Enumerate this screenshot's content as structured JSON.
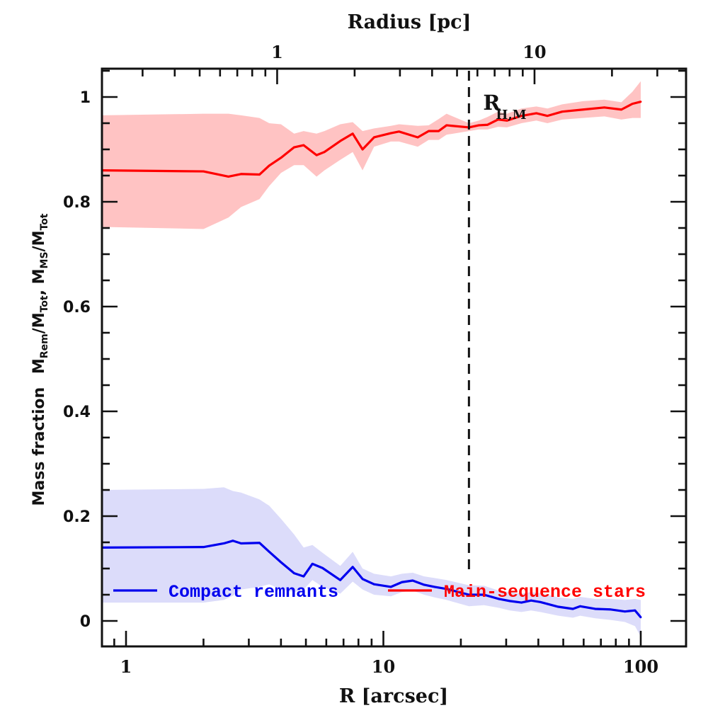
{
  "chart_data": {
    "type": "line",
    "title": "",
    "xlabel": "R [arcsec]",
    "xlabel_top": "Radius [pc]",
    "ylabel": {
      "prefix": "Mass fraction",
      "formula": [
        {
          "t": "M",
          "sub": "Rem"
        },
        {
          "t": "/M",
          "sub": "Tot"
        },
        {
          "t": ", M",
          "sub": "MS"
        },
        {
          "t": "/M",
          "sub": "Tot"
        }
      ]
    },
    "xscale": "log",
    "xlim": [
      0.8,
      150
    ],
    "ylim": [
      -0.05,
      1.055
    ],
    "x_ticks_major": [
      1,
      10,
      100
    ],
    "x_tick_labels": [
      "1",
      "10",
      "100"
    ],
    "x_top_ticks_major_pc": [
      1,
      10
    ],
    "x_top_tick_labels": [
      "1",
      "10"
    ],
    "pc_per_arcsec": 0.2587,
    "y_ticks_major": [
      0,
      0.2,
      0.4,
      0.6,
      0.8,
      1
    ],
    "y_tick_labels": [
      "0",
      "0.2",
      "0.4",
      "0.6",
      "0.8",
      "1"
    ],
    "y_minor_step": 0.05,
    "grid": false,
    "legend_position": "bottom",
    "annotation": {
      "text": "R",
      "sub": "H,M",
      "x_arcsec": 21.5
    },
    "series": [
      {
        "name": "Compact remnants",
        "color": "#0000ee",
        "band_color": "#dcdcfa",
        "x": [
          0.8,
          2.0,
          2.4,
          2.6,
          2.8,
          3.3,
          3.6,
          4.0,
          4.5,
          4.9,
          5.3,
          5.8,
          6.8,
          7.6,
          8.3,
          9.2,
          10.7,
          11.8,
          13.0,
          14.4,
          15.8,
          17.6,
          21.5,
          24.6,
          28.1,
          31.0,
          34.4,
          37.5,
          40.7,
          47.8,
          54.5,
          58.2,
          66.5,
          75.9,
          86.8,
          95.0,
          100
        ],
        "values": [
          0.14,
          0.141,
          0.148,
          0.153,
          0.148,
          0.149,
          0.132,
          0.112,
          0.091,
          0.085,
          0.109,
          0.101,
          0.078,
          0.103,
          0.08,
          0.07,
          0.065,
          0.074,
          0.077,
          0.069,
          0.065,
          0.061,
          0.05,
          0.05,
          0.042,
          0.038,
          0.035,
          0.039,
          0.036,
          0.027,
          0.023,
          0.028,
          0.023,
          0.022,
          0.018,
          0.02,
          0.007
        ],
        "lower": [
          0.035,
          0.035,
          0.04,
          0.048,
          0.06,
          0.065,
          0.07,
          0.06,
          0.055,
          0.06,
          0.078,
          0.065,
          0.052,
          0.075,
          0.06,
          0.05,
          0.047,
          0.055,
          0.058,
          0.05,
          0.045,
          0.04,
          0.028,
          0.03,
          0.025,
          0.02,
          0.017,
          0.02,
          0.017,
          0.01,
          0.006,
          0.01,
          0.005,
          0.002,
          -0.002,
          -0.01,
          -0.03
        ],
        "upper": [
          0.25,
          0.252,
          0.255,
          0.248,
          0.245,
          0.232,
          0.22,
          0.195,
          0.165,
          0.14,
          0.145,
          0.13,
          0.105,
          0.132,
          0.1,
          0.09,
          0.085,
          0.09,
          0.092,
          0.085,
          0.082,
          0.078,
          0.068,
          0.067,
          0.058,
          0.055,
          0.052,
          0.055,
          0.053,
          0.045,
          0.042,
          0.046,
          0.042,
          0.042,
          0.04,
          0.042,
          0.04
        ]
      },
      {
        "name": "Main-sequence stars",
        "color": "#ff0000",
        "band_color": "#ffc3c3",
        "x": [
          0.8,
          2.0,
          2.5,
          2.8,
          3.3,
          3.6,
          4.0,
          4.5,
          4.9,
          5.5,
          5.9,
          6.8,
          7.6,
          8.3,
          9.2,
          10.7,
          11.5,
          13.6,
          15.0,
          16.4,
          17.6,
          21.5,
          23.5,
          25.4,
          27.9,
          30.2,
          34.4,
          39.3,
          43.4,
          49.5,
          59.7,
          72.2,
          84.1,
          92.8,
          100
        ],
        "values": [
          0.86,
          0.858,
          0.848,
          0.853,
          0.852,
          0.869,
          0.884,
          0.904,
          0.908,
          0.889,
          0.895,
          0.916,
          0.93,
          0.9,
          0.923,
          0.931,
          0.934,
          0.923,
          0.935,
          0.935,
          0.946,
          0.942,
          0.946,
          0.947,
          0.957,
          0.955,
          0.964,
          0.969,
          0.964,
          0.972,
          0.976,
          0.98,
          0.976,
          0.987,
          0.991
        ],
        "lower": [
          0.752,
          0.748,
          0.77,
          0.79,
          0.805,
          0.83,
          0.855,
          0.87,
          0.87,
          0.848,
          0.86,
          0.88,
          0.895,
          0.86,
          0.905,
          0.915,
          0.915,
          0.905,
          0.918,
          0.918,
          0.928,
          0.935,
          0.938,
          0.938,
          0.943,
          0.942,
          0.95,
          0.955,
          0.95,
          0.957,
          0.96,
          0.963,
          0.957,
          0.96,
          0.96
        ],
        "upper": [
          0.965,
          0.968,
          0.968,
          0.965,
          0.96,
          0.95,
          0.948,
          0.93,
          0.935,
          0.93,
          0.935,
          0.948,
          0.952,
          0.935,
          0.94,
          0.945,
          0.948,
          0.945,
          0.946,
          0.958,
          0.968,
          0.95,
          0.955,
          0.962,
          0.972,
          0.968,
          0.978,
          0.982,
          0.978,
          0.986,
          0.992,
          0.995,
          0.99,
          1.01,
          1.03
        ]
      }
    ]
  }
}
